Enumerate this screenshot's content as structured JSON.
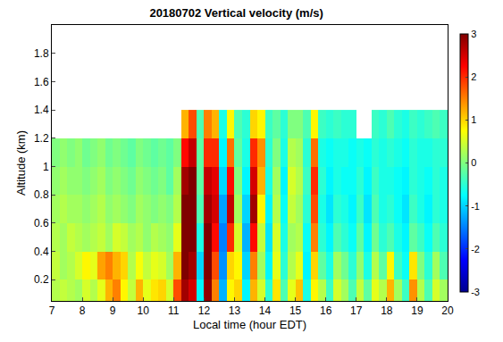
{
  "chart_data": {
    "type": "heatmap",
    "title": "20180702 Vertical velocity (m/s)",
    "x_label": "Local time (hour EDT)",
    "y_label": "Altitude (km)",
    "x": [
      7.125,
      7.375,
      7.625,
      7.875,
      8.125,
      8.375,
      8.625,
      8.875,
      9.125,
      9.375,
      9.625,
      9.875,
      10.125,
      10.375,
      10.625,
      10.875,
      11.125,
      11.375,
      11.625,
      11.875,
      12.125,
      12.375,
      12.625,
      12.875,
      13.125,
      13.375,
      13.625,
      13.875,
      14.125,
      14.375,
      14.625,
      14.875,
      15.125,
      15.375,
      15.625,
      15.875,
      16.125,
      16.375,
      16.625,
      16.875,
      17.125,
      17.375,
      17.625,
      17.875,
      18.125,
      18.375,
      18.625,
      18.875,
      19.125,
      19.375,
      19.625,
      19.875
    ],
    "y": [
      0.1,
      0.3,
      0.5,
      0.7,
      0.9,
      1.1,
      1.3
    ],
    "z": [
      [
        0.3,
        0.4,
        0.3,
        0.2,
        0.5,
        0.3,
        0.6,
        1.2,
        1.5,
        0.8,
        0.4,
        1.2,
        0.6,
        0.9,
        1.0,
        0.5,
        1.8,
        2.8,
        2.5,
        -0.8,
        2.9,
        1.5,
        -1.2,
        0.8,
        1.0,
        -0.8,
        1.2,
        0.5,
        -0.5,
        0.9,
        -0.3,
        0.6,
        1.1,
        -0.6,
        0.8,
        0.3,
        -0.4,
        0.5,
        0.2,
        -0.3,
        0.4,
        -0.2,
        0.6,
        0.3,
        1.2,
        0.2,
        -0.4,
        1.4,
        0.3,
        -0.3,
        0.5,
        0.2
      ],
      [
        0.4,
        0.2,
        0.3,
        0.5,
        0.8,
        0.6,
        1.3,
        1.5,
        1.2,
        1.0,
        0.3,
        0.7,
        0.4,
        0.6,
        0.5,
        0.2,
        1.2,
        3.0,
        2.8,
        -1.0,
        3.0,
        1.8,
        -1.4,
        1.0,
        0.8,
        -1.0,
        1.5,
        0.2,
        -0.8,
        0.6,
        -0.5,
        0.3,
        0.6,
        -0.8,
        1.0,
        -0.2,
        -0.6,
        0.2,
        -0.1,
        -0.5,
        0.1,
        -0.6,
        0.3,
        -0.2,
        0.8,
        -0.4,
        -0.7,
        0.9,
        0.0,
        -0.5,
        0.2,
        -0.3
      ],
      [
        0.3,
        0.2,
        0.4,
        0.3,
        0.2,
        0.3,
        0.4,
        0.2,
        0.5,
        0.4,
        0.2,
        0.3,
        0.1,
        0.3,
        0.2,
        0.1,
        0.6,
        3.0,
        3.0,
        -0.6,
        3.0,
        2.2,
        -1.5,
        2.0,
        0.5,
        -1.2,
        2.2,
        0.4,
        -0.9,
        0.5,
        -0.6,
        0.2,
        0.3,
        -0.7,
        1.5,
        -0.5,
        -0.8,
        -0.3,
        -0.5,
        -0.7,
        -0.2,
        -0.8,
        -0.1,
        -0.5,
        -0.3,
        -0.6,
        -0.8,
        -0.2,
        -0.4,
        -0.7,
        -0.3,
        -0.5
      ],
      [
        0.2,
        0.3,
        0.2,
        0.2,
        0.1,
        0.2,
        0.3,
        0.1,
        0.2,
        0.1,
        0.0,
        0.2,
        0.1,
        0.0,
        0.1,
        0.0,
        0.3,
        3.0,
        3.0,
        -0.3,
        2.8,
        2.5,
        -1.3,
        2.6,
        0.2,
        -1.0,
        2.8,
        0.8,
        -0.8,
        0.3,
        -0.7,
        0.4,
        0.2,
        -0.5,
        1.8,
        -0.6,
        -0.9,
        -0.5,
        -0.6,
        -0.8,
        -0.4,
        -0.9,
        -0.3,
        -0.6,
        -0.5,
        -0.7,
        -0.9,
        -0.4,
        -0.6,
        -0.8,
        -0.5,
        -0.6
      ],
      [
        0.1,
        0.2,
        0.1,
        0.1,
        0.0,
        0.1,
        0.2,
        0.0,
        0.1,
        0.0,
        -0.1,
        0.1,
        0.0,
        -0.1,
        0.0,
        -0.2,
        0.2,
        2.8,
        3.0,
        -0.2,
        2.6,
        2.4,
        -1.0,
        2.2,
        0.0,
        -0.8,
        2.5,
        1.2,
        -0.6,
        0.2,
        -0.8,
        0.5,
        0.3,
        -0.4,
        2.0,
        -0.5,
        -0.8,
        -0.6,
        -0.7,
        -0.7,
        -0.5,
        -0.8,
        -0.4,
        -0.6,
        -0.6,
        -0.7,
        -0.8,
        -0.5,
        -0.6,
        -0.7,
        -0.5,
        -0.6
      ],
      [
        0.0,
        0.1,
        0.0,
        0.1,
        -0.1,
        0.0,
        0.1,
        -0.1,
        0.0,
        -0.1,
        -0.2,
        0.0,
        -0.1,
        -0.2,
        -0.1,
        -0.2,
        0.0,
        2.2,
        2.6,
        -0.2,
        2.0,
        2.0,
        -0.8,
        1.6,
        -0.2,
        -0.6,
        2.0,
        1.4,
        -0.5,
        0.0,
        -0.6,
        0.3,
        0.2,
        -0.5,
        1.6,
        -0.6,
        -0.7,
        -0.6,
        -0.6,
        -0.7,
        -0.6,
        -0.7,
        -0.5,
        -0.6,
        -0.5,
        -0.6,
        -0.7,
        -0.5,
        -0.6,
        -0.6,
        -0.5,
        -0.5
      ],
      [
        null,
        null,
        null,
        null,
        null,
        null,
        null,
        null,
        null,
        null,
        null,
        null,
        null,
        null,
        null,
        null,
        null,
        1.2,
        1.8,
        -0.3,
        1.5,
        1.2,
        -0.6,
        0.8,
        -0.3,
        -0.5,
        1.0,
        0.8,
        -0.4,
        -0.2,
        -0.5,
        0.0,
        0.0,
        -0.3,
        0.8,
        -0.4,
        -0.5,
        -0.4,
        -0.5,
        -0.5,
        null,
        null,
        -0.4,
        -0.5,
        -0.3,
        -0.5,
        -0.6,
        -0.4,
        -0.5,
        -0.4,
        -0.3,
        -0.4
      ]
    ],
    "xlim": [
      7,
      20
    ],
    "xticks": [
      7,
      8,
      9,
      10,
      11,
      12,
      13,
      14,
      15,
      16,
      17,
      18,
      19,
      20
    ],
    "ylim": [
      0.05,
      2.0
    ],
    "yticks": [
      0.2,
      0.4,
      0.6,
      0.8,
      1,
      1.2,
      1.4,
      1.6,
      1.8
    ],
    "zlim": [
      -3,
      3
    ],
    "zticks": [
      -3,
      -2,
      -1,
      0,
      1,
      2,
      3
    ]
  }
}
